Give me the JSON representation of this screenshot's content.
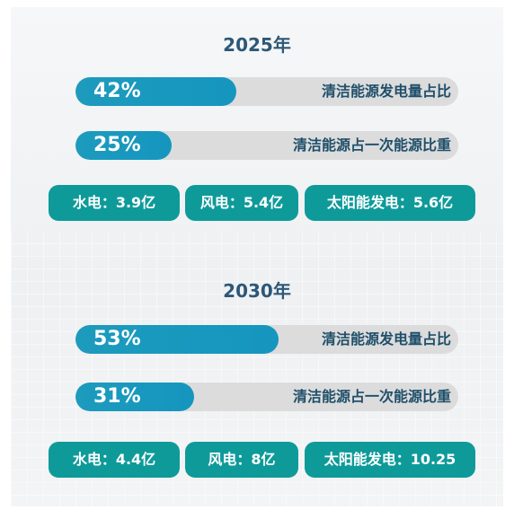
{
  "chart_data": [
    {
      "type": "bar",
      "title": "2025年",
      "bars": [
        {
          "value": 42,
          "value_label": "42%",
          "label": "清洁能源发电量占比"
        },
        {
          "value": 25,
          "value_label": "25%",
          "label": "清洁能源占一次能源比重"
        }
      ],
      "pills": [
        {
          "text": "水电：3.9亿",
          "category": "水电",
          "value": 3.9
        },
        {
          "text": "风电：5.4亿",
          "category": "风电",
          "value": 5.4
        },
        {
          "text": "太阳能发电：5.6亿",
          "category": "太阳能发电",
          "value": 5.6
        }
      ]
    },
    {
      "type": "bar",
      "title": "2030年",
      "bars": [
        {
          "value": 53,
          "value_label": "53%",
          "label": "清洁能源发电量占比"
        },
        {
          "value": 31,
          "value_label": "31%",
          "label": "清洁能源占一次能源比重"
        }
      ],
      "pills": [
        {
          "text": "水电：4.4亿",
          "category": "水电",
          "value": 4.4
        },
        {
          "text": "风电：8亿",
          "category": "风电",
          "value": 8
        },
        {
          "text": "太阳能发电：10.25",
          "category": "太阳能发电",
          "value": 10.25
        }
      ]
    }
  ],
  "colors": {
    "bar_fill": "#1596bf",
    "bar_track": "#dcdcdc",
    "pill": "#0f9a9a",
    "year_title": "#2d5877",
    "bar_label": "#1f4f6a"
  }
}
